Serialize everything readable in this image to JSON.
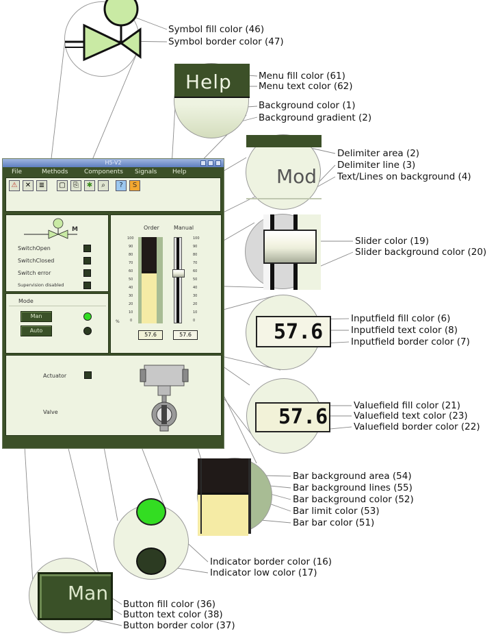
{
  "window": {
    "title": "H5-V2",
    "menu": [
      "File",
      "Methods",
      "Components",
      "Signals",
      "Help"
    ],
    "toolbar_icons": [
      "warning-icon",
      "close-icon",
      "notes-icon",
      "window-icon",
      "copy-icon",
      "star-icon",
      "zoom-icon",
      "help-icon",
      "s-icon"
    ],
    "toolbar_glyphs": [
      "⚠",
      "✕",
      "≣",
      "▢",
      "⎘",
      "✱",
      "⌕",
      "?",
      "S"
    ],
    "symbol_label": "M",
    "status": [
      {
        "label": "SwitchOpen"
      },
      {
        "label": "SwitchClosed"
      },
      {
        "label": "Switch error"
      },
      {
        "label": "Supervision disabled"
      }
    ],
    "mode_label": "Mode",
    "buttons": {
      "man": "Man",
      "auto": "Auto"
    },
    "slider_panel": {
      "order_label": "Order",
      "manual_label": "Manual",
      "unit": "%",
      "scale": [
        "100",
        "90",
        "80",
        "70",
        "60",
        "50",
        "40",
        "30",
        "20",
        "10",
        "0"
      ],
      "order_value": "57.6",
      "manual_value": "57.6",
      "bar_fraction": 0.576,
      "limit_fraction": 0.6
    },
    "bottom": {
      "actuator_label": "Actuator",
      "valve_label": "Valve"
    }
  },
  "insets": {
    "help_text": "Help",
    "mode_text": "Mod",
    "input_value": "57.6",
    "value_text": "57.6",
    "button_text": "Man"
  },
  "callouts": [
    "Symbol fill color (46)",
    "Symbol border color (47)",
    "Menu fill color (61)",
    "Menu text color (62)",
    "Background color (1)",
    "Background gradient (2)",
    "Delimiter area (2)",
    "Delimiter line (3)",
    "Text/Lines on background (4)",
    "Slider color (19)",
    "Slider background color (20)",
    "Inputfield fill color (6)",
    "Inputfield text color (8)",
    "Inputfield border color (7)",
    "Valuefield fill color (21)",
    "Valuefield text color (23)",
    "Valuefield border color (22)",
    "Bar background area (54)",
    "Bar background lines (55)",
    "Bar background color (52)",
    "Bar limit color (53)",
    "Bar bar color (51)",
    "Indicator border color (16)",
    "Indicator low color (17)",
    "Button fill color (36)",
    "Button text color (38)",
    "Button border color (37)"
  ],
  "colors": {
    "panel_bg": "#eef3e1",
    "window_dark": "#3c5028",
    "bar_fill": "#f5eba5",
    "bar_bg": "#201a18",
    "bar_area": "#a8bc94",
    "indicator_high": "#33dd22",
    "indicator_low": "#2c3b22",
    "symbol_fill": "#c9eaa4"
  }
}
